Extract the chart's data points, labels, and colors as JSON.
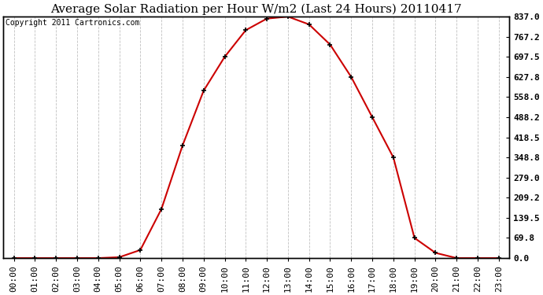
{
  "title": "Average Solar Radiation per Hour W/m2 (Last 24 Hours) 20110417",
  "copyright": "Copyright 2011 Cartronics.com",
  "hours": [
    "00:00",
    "01:00",
    "02:00",
    "03:00",
    "04:00",
    "05:00",
    "06:00",
    "07:00",
    "08:00",
    "09:00",
    "10:00",
    "11:00",
    "12:00",
    "13:00",
    "14:00",
    "15:00",
    "16:00",
    "17:00",
    "18:00",
    "19:00",
    "20:00",
    "21:00",
    "22:00",
    "23:00"
  ],
  "values": [
    0.0,
    0.0,
    0.0,
    0.0,
    0.0,
    3.0,
    28.0,
    170.0,
    390.0,
    580.0,
    697.5,
    790.0,
    830.0,
    837.0,
    810.0,
    740.0,
    627.8,
    488.2,
    348.8,
    69.8,
    18.0,
    0.0,
    0.0,
    0.0
  ],
  "line_color": "#cc0000",
  "marker": "+",
  "marker_color": "#000000",
  "marker_size": 5,
  "background_color": "#ffffff",
  "plot_bg_color": "#ffffff",
  "grid_color": "#c0c0c0",
  "ylim": [
    0.0,
    837.0
  ],
  "yticks": [
    0.0,
    69.8,
    139.5,
    209.2,
    279.0,
    348.8,
    418.5,
    488.2,
    558.0,
    627.8,
    697.5,
    767.2,
    837.0
  ],
  "ytick_labels": [
    "0.0",
    "69.8",
    "139.5",
    "209.2",
    "279.0",
    "348.8",
    "418.5",
    "488.2",
    "558.0",
    "627.8",
    "697.5",
    "767.2",
    "837.0"
  ],
  "title_fontsize": 11,
  "copyright_fontsize": 7,
  "tick_fontsize": 8
}
